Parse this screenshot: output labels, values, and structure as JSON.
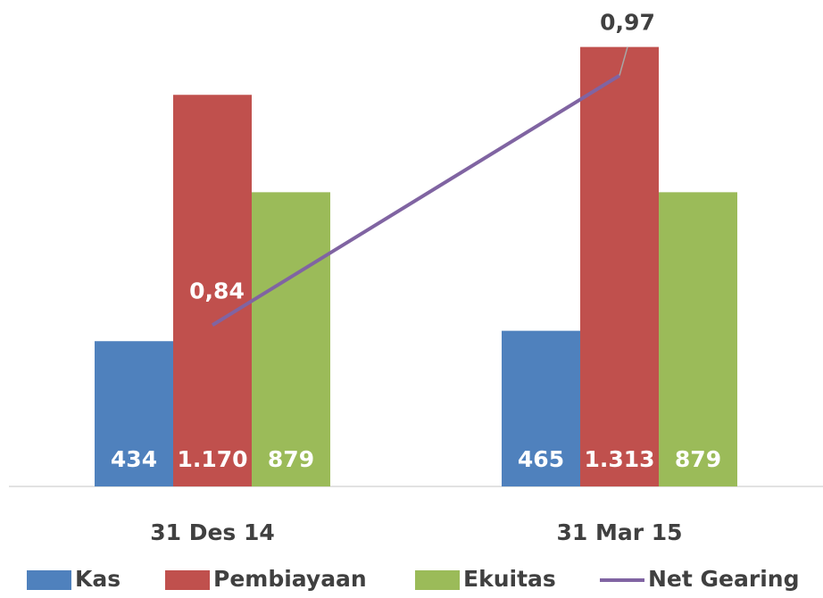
{
  "chart_data": {
    "type": "bar",
    "categories": [
      "31 Des 14",
      "31 Mar 15"
    ],
    "series": [
      {
        "name": "Kas",
        "color": "#4f81bd",
        "values": [
          434,
          465
        ],
        "value_labels": [
          "434",
          "465"
        ]
      },
      {
        "name": "Pembiayaan",
        "color": "#c0504d",
        "values": [
          1170,
          1313
        ],
        "value_labels": [
          "1.170",
          "1.313"
        ]
      },
      {
        "name": "Ekuitas",
        "color": "#9bbb59",
        "values": [
          879,
          879
        ],
        "value_labels": [
          "879",
          "879"
        ]
      },
      {
        "name": "Net Gearing",
        "type": "line",
        "axis": "y2",
        "color": "#8064a2",
        "values": [
          0.84,
          0.97
        ],
        "value_labels": [
          "0,84",
          "0,97"
        ]
      }
    ],
    "ylim": [
      0,
      1400
    ],
    "y2lim": [
      0.756,
      1.0
    ],
    "legend": "bottom"
  }
}
